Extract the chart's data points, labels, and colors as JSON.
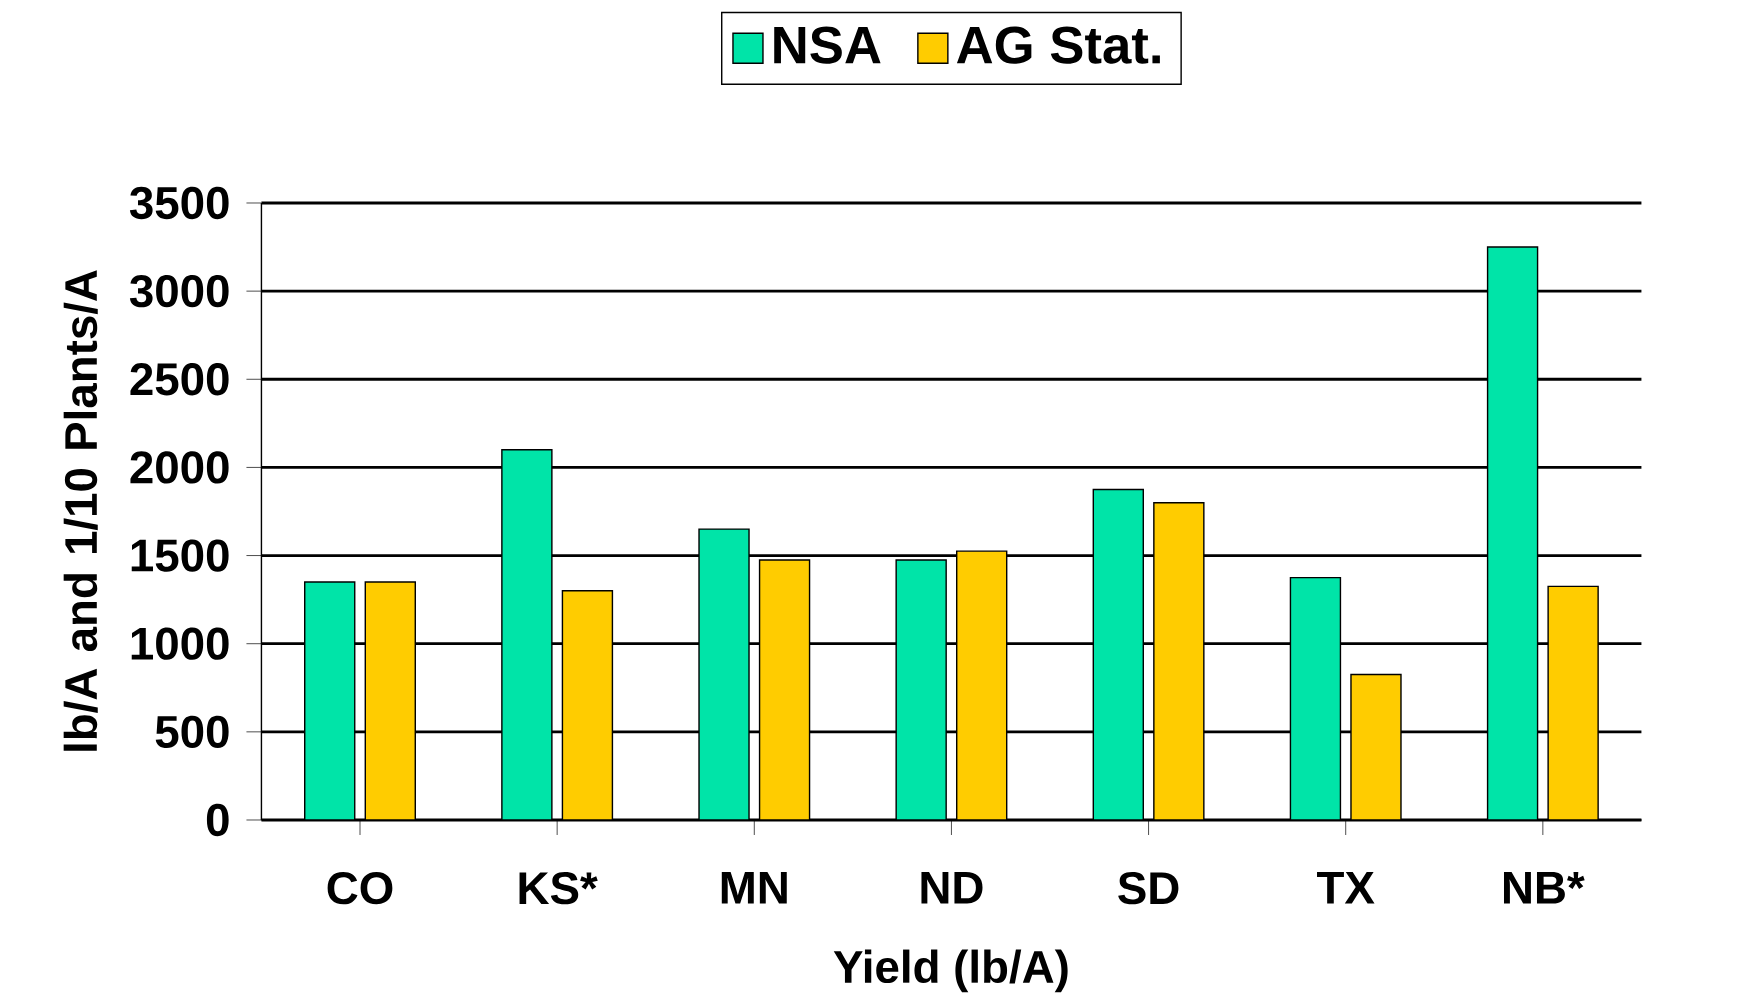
{
  "chart_data": {
    "type": "bar",
    "xlabel": "Yield (lb/A)",
    "ylabel": "lb/A and 1/10 Plants/A",
    "categories": [
      "CO",
      "KS*",
      "MN",
      "ND",
      "SD",
      "TX",
      "NB*"
    ],
    "series": [
      {
        "name": "NSA",
        "color": "#00e4a8",
        "values": [
          1350,
          2100,
          1650,
          1475,
          1875,
          1375,
          3250
        ]
      },
      {
        "name": "AG Stat.",
        "color": "#ffcc00",
        "values": [
          1350,
          1300,
          1475,
          1525,
          1800,
          825,
          1325
        ]
      }
    ],
    "ylim": [
      0,
      3500
    ],
    "yticks": [
      0,
      500,
      1000,
      1500,
      2000,
      2500,
      3000,
      3500
    ],
    "grid": "y",
    "legend": "top"
  }
}
